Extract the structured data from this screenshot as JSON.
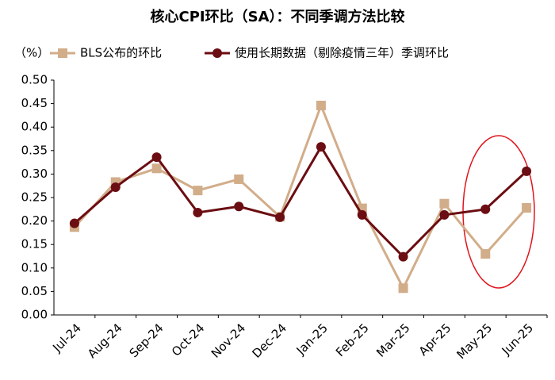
{
  "chart_data": {
    "type": "line",
    "title": "核心CPI环比（SA）：不同季调方法比较",
    "y_label": "（%）",
    "categories": [
      "Jul-24",
      "Aug-24",
      "Sep-24",
      "Oct-24",
      "Nov-24",
      "Dec-24",
      "Jan-25",
      "Feb-25",
      "Mar-25",
      "Apr-25",
      "May-25",
      "Jun-25"
    ],
    "series": [
      {
        "name": "BLS公布的环比",
        "color": "#d2ad8a",
        "marker": "square",
        "values": [
          0.187,
          0.283,
          0.312,
          0.265,
          0.289,
          0.209,
          0.446,
          0.227,
          0.057,
          0.237,
          0.13,
          0.228
        ]
      },
      {
        "name": "使用长期数据（剔除疫情三年）季调环比",
        "color": "#6b0d12",
        "marker": "circle",
        "values": [
          0.195,
          0.272,
          0.336,
          0.218,
          0.231,
          0.208,
          0.358,
          0.213,
          0.124,
          0.213,
          0.225,
          0.306
        ]
      }
    ],
    "ylim": [
      0,
      0.5
    ],
    "yticks": [
      {
        "value": 0,
        "label": "0.00"
      },
      {
        "value": 0.05,
        "label": "0.05"
      },
      {
        "value": 0.1,
        "label": "0.10"
      },
      {
        "value": 0.15,
        "label": "0.15"
      },
      {
        "value": 0.2,
        "label": "0.20"
      },
      {
        "value": 0.25,
        "label": "0.25"
      },
      {
        "value": 0.3,
        "label": "0.30"
      },
      {
        "value": 0.35,
        "label": "0.35"
      },
      {
        "value": 0.4,
        "label": "0.40"
      },
      {
        "value": 0.45,
        "label": "0.45"
      },
      {
        "value": 0.5,
        "label": "0.50"
      }
    ],
    "grid": false
  }
}
